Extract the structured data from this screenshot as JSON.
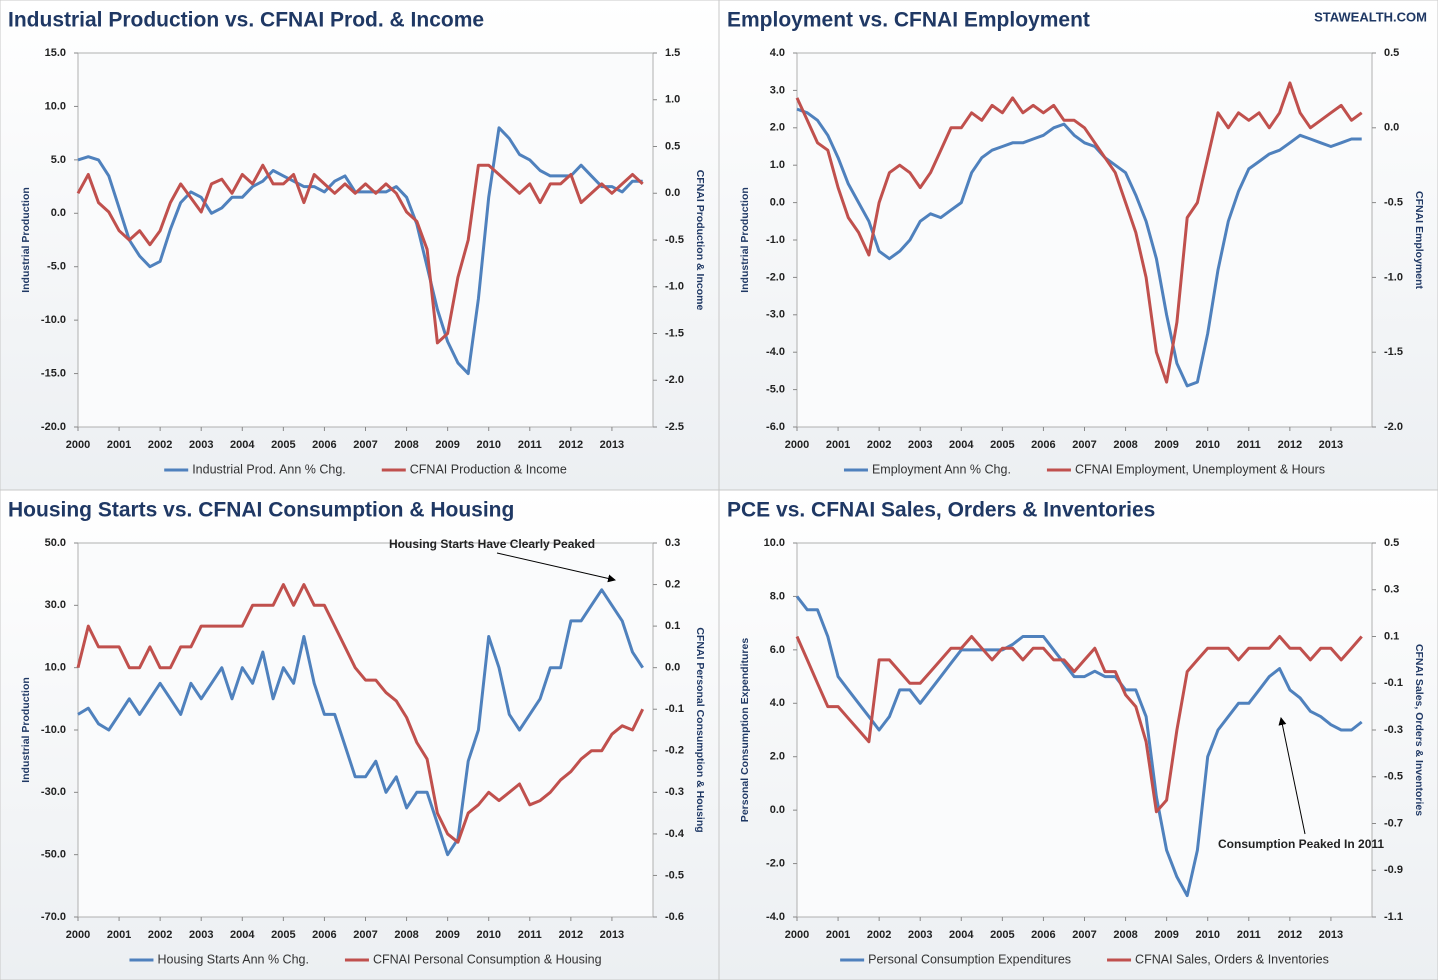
{
  "brand": "STAWEALTH.COM",
  "chart_data": [
    {
      "type": "line",
      "title": "Industrial Production vs. CFNAI Prod. & Income",
      "y_label": "Industrial Production",
      "y2_label": "CFNAI Production & Income",
      "x": [
        2000,
        2000.25,
        2000.5,
        2000.75,
        2001,
        2001.25,
        2001.5,
        2001.75,
        2002,
        2002.25,
        2002.5,
        2002.75,
        2003,
        2003.25,
        2003.5,
        2003.75,
        2004,
        2004.25,
        2004.5,
        2004.75,
        2005,
        2005.25,
        2005.5,
        2005.75,
        2006,
        2006.25,
        2006.5,
        2006.75,
        2007,
        2007.25,
        2007.5,
        2007.75,
        2008,
        2008.25,
        2008.5,
        2008.75,
        2009,
        2009.25,
        2009.5,
        2009.75,
        2010,
        2010.25,
        2010.5,
        2010.75,
        2011,
        2011.25,
        2011.5,
        2011.75,
        2012,
        2012.25,
        2012.5,
        2012.75,
        2013,
        2013.25,
        2013.5,
        2013.75
      ],
      "xlim": [
        2000,
        2014
      ],
      "xticks": [
        2000,
        2001,
        2002,
        2003,
        2004,
        2005,
        2006,
        2007,
        2008,
        2009,
        2010,
        2011,
        2012,
        2013
      ],
      "ylim": [
        -20,
        15
      ],
      "yticks": [
        {
          "value": 15,
          "label": "15.0"
        },
        {
          "value": 10,
          "label": "10.0"
        },
        {
          "value": 5,
          "label": "5.0"
        },
        {
          "value": 0,
          "label": "0.0"
        },
        {
          "value": -5,
          "label": "-5.0"
        },
        {
          "value": -10,
          "label": "-10.0"
        },
        {
          "value": -15,
          "label": "-15.0"
        },
        {
          "value": -20,
          "label": "-20.0"
        }
      ],
      "y2lim": [
        -2.5,
        1.5
      ],
      "y2ticks": [
        1.5,
        {
          "value": 1,
          "label": "1.0"
        },
        0.5,
        {
          "value": 0,
          "label": "0.0"
        },
        -0.5,
        {
          "value": -1,
          "label": "-1.0"
        },
        -1.5,
        {
          "value": -2,
          "label": "-2.0"
        },
        -2.5
      ],
      "series": [
        {
          "name": "Industrial Prod. Ann % Chg.",
          "color": "#4f81bd",
          "values": [
            5.0,
            5.3,
            5.0,
            3.5,
            0.5,
            -2.5,
            -4.0,
            -5.0,
            -4.5,
            -1.5,
            1.0,
            2.0,
            1.5,
            0,
            0.5,
            1.5,
            1.5,
            2.5,
            3.0,
            4.0,
            3.5,
            3.0,
            2.5,
            2.5,
            2.0,
            3.0,
            3.5,
            2.0,
            2.0,
            2.0,
            2.0,
            2.5,
            1.5,
            -1.0,
            -5.0,
            -9.0,
            -12.0,
            -14.0,
            -15.0,
            -8.0,
            1.5,
            8.0,
            7.0,
            5.5,
            5.0,
            4.0,
            3.5,
            3.5,
            3.5,
            4.5,
            3.5,
            2.5,
            2.5,
            2.0,
            3.0,
            3.0
          ]
        },
        {
          "name": "CFNAI Production & Income",
          "color": "#c0504d",
          "axis": "y2",
          "values": [
            0.0,
            0.2,
            -0.1,
            -0.2,
            -0.4,
            -0.5,
            -0.4,
            -0.55,
            -0.4,
            -0.1,
            0.1,
            -0.05,
            -0.2,
            0.1,
            0.15,
            0.0,
            0.2,
            0.1,
            0.3,
            0.1,
            0.1,
            0.2,
            -0.1,
            0.2,
            0.1,
            0.0,
            0.1,
            0.0,
            0.1,
            0.0,
            0.1,
            0.0,
            -0.2,
            -0.3,
            -0.6,
            -1.6,
            -1.5,
            -0.9,
            -0.5,
            0.3,
            0.3,
            0.2,
            0.1,
            0.0,
            0.1,
            -0.1,
            0.1,
            0.1,
            0.2,
            -0.1,
            0.0,
            0.1,
            0.0,
            0.1,
            0.2,
            0.1
          ]
        }
      ]
    },
    {
      "type": "line",
      "title": "Employment vs. CFNAI Employment",
      "y_label": "Industrial Production",
      "y2_label": "CFNAI Employment",
      "x": [
        2000,
        2000.25,
        2000.5,
        2000.75,
        2001,
        2001.25,
        2001.5,
        2001.75,
        2002,
        2002.25,
        2002.5,
        2002.75,
        2003,
        2003.25,
        2003.5,
        2003.75,
        2004,
        2004.25,
        2004.5,
        2004.75,
        2005,
        2005.25,
        2005.5,
        2005.75,
        2006,
        2006.25,
        2006.5,
        2006.75,
        2007,
        2007.25,
        2007.5,
        2007.75,
        2008,
        2008.25,
        2008.5,
        2008.75,
        2009,
        2009.25,
        2009.5,
        2009.75,
        2010,
        2010.25,
        2010.5,
        2010.75,
        2011,
        2011.25,
        2011.5,
        2011.75,
        2012,
        2012.25,
        2012.5,
        2012.75,
        2013,
        2013.25,
        2013.5,
        2013.75
      ],
      "xlim": [
        2000,
        2014
      ],
      "xticks": [
        2000,
        2001,
        2002,
        2003,
        2004,
        2005,
        2006,
        2007,
        2008,
        2009,
        2010,
        2011,
        2012,
        2013
      ],
      "ylim": [
        -6,
        4
      ],
      "yticks": [
        {
          "value": 4,
          "label": "4.0"
        },
        {
          "value": 3,
          "label": "3.0"
        },
        {
          "value": 2,
          "label": "2.0"
        },
        {
          "value": 1,
          "label": "1.0"
        },
        {
          "value": 0,
          "label": "0.0"
        },
        {
          "value": -1,
          "label": "-1.0"
        },
        {
          "value": -2,
          "label": "-2.0"
        },
        {
          "value": -3,
          "label": "-3.0"
        },
        {
          "value": -4,
          "label": "-4.0"
        },
        {
          "value": -5,
          "label": "-5.0"
        },
        {
          "value": -6,
          "label": "-6.0"
        }
      ],
      "y2lim": [
        -2,
        0.5
      ],
      "y2ticks": [
        0.5,
        {
          "value": 0,
          "label": "0.0"
        },
        -0.5,
        {
          "value": -1,
          "label": "-1.0"
        },
        -1.5,
        {
          "value": -2,
          "label": "-2.0"
        }
      ],
      "series": [
        {
          "name": "Employment Ann % Chg.",
          "color": "#4f81bd",
          "values": [
            2.5,
            2.4,
            2.2,
            1.8,
            1.2,
            0.5,
            0,
            -0.5,
            -1.3,
            -1.5,
            -1.3,
            -1.0,
            -0.5,
            -0.3,
            -0.4,
            -0.2,
            0.0,
            0.8,
            1.2,
            1.4,
            1.5,
            1.6,
            1.6,
            1.7,
            1.8,
            2.0,
            2.1,
            1.8,
            1.6,
            1.5,
            1.2,
            1.0,
            0.8,
            0.2,
            -0.5,
            -1.5,
            -3.0,
            -4.3,
            -4.9,
            -4.8,
            -3.5,
            -1.8,
            -0.5,
            0.3,
            0.9,
            1.1,
            1.3,
            1.4,
            1.6,
            1.8,
            1.7,
            1.6,
            1.5,
            1.6,
            1.7,
            1.7
          ]
        },
        {
          "name": "CFNAI Employment, Unemployment & Hours",
          "color": "#c0504d",
          "axis": "y2",
          "values": [
            0.2,
            0.05,
            -0.1,
            -0.15,
            -0.4,
            -0.6,
            -0.7,
            -0.85,
            -0.5,
            -0.3,
            -0.25,
            -0.3,
            -0.4,
            -0.3,
            -0.15,
            0.0,
            0.0,
            0.1,
            0.05,
            0.15,
            0.1,
            0.2,
            0.1,
            0.15,
            0.1,
            0.15,
            0.05,
            0.05,
            0.0,
            -0.1,
            -0.2,
            -0.3,
            -0.5,
            -0.7,
            -1.0,
            -1.5,
            -1.7,
            -1.3,
            -0.6,
            -0.5,
            -0.2,
            0.1,
            0.0,
            0.1,
            0.05,
            0.1,
            0.0,
            0.1,
            0.3,
            0.1,
            0.0,
            0.05,
            0.1,
            0.15,
            0.05,
            0.1
          ]
        }
      ]
    },
    {
      "type": "line",
      "title": "Housing Starts vs. CFNAI Consumption & Housing",
      "y_label": "Industrial Production",
      "y2_label": "CFNAI Personal Consumption & Housing",
      "annotation": "Housing Starts Have Clearly Peaked",
      "x": [
        2000,
        2000.25,
        2000.5,
        2000.75,
        2001,
        2001.25,
        2001.5,
        2001.75,
        2002,
        2002.25,
        2002.5,
        2002.75,
        2003,
        2003.25,
        2003.5,
        2003.75,
        2004,
        2004.25,
        2004.5,
        2004.75,
        2005,
        2005.25,
        2005.5,
        2005.75,
        2006,
        2006.25,
        2006.5,
        2006.75,
        2007,
        2007.25,
        2007.5,
        2007.75,
        2008,
        2008.25,
        2008.5,
        2008.75,
        2009,
        2009.25,
        2009.5,
        2009.75,
        2010,
        2010.25,
        2010.5,
        2010.75,
        2011,
        2011.25,
        2011.5,
        2011.75,
        2012,
        2012.25,
        2012.5,
        2012.75,
        2013,
        2013.25,
        2013.5,
        2013.75
      ],
      "xlim": [
        2000,
        2014
      ],
      "xticks": [
        2000,
        2001,
        2002,
        2003,
        2004,
        2005,
        2006,
        2007,
        2008,
        2009,
        2010,
        2011,
        2012,
        2013
      ],
      "ylim": [
        -70,
        50
      ],
      "yticks": [
        {
          "value": 50,
          "label": "50.0"
        },
        {
          "value": 30,
          "label": "30.0"
        },
        {
          "value": 10,
          "label": "10.0"
        },
        {
          "value": -10,
          "label": "-10.0"
        },
        {
          "value": -30,
          "label": "-30.0"
        },
        {
          "value": -50,
          "label": "-50.0"
        },
        {
          "value": -70,
          "label": "-70.0"
        }
      ],
      "y2lim": [
        -0.6,
        0.3
      ],
      "y2ticks": [
        0.3,
        0.2,
        0.1,
        {
          "value": 0,
          "label": "0.0"
        },
        -0.1,
        -0.2,
        -0.3,
        -0.4,
        -0.5,
        -0.6
      ],
      "series": [
        {
          "name": "Housing Starts Ann % Chg.",
          "color": "#4f81bd",
          "values": [
            -5,
            -3,
            -8,
            -10,
            -5,
            0,
            -5,
            0,
            5,
            0,
            -5,
            5,
            0,
            5,
            10,
            0,
            10,
            5,
            15,
            0,
            10,
            5,
            20,
            5,
            -5,
            -5,
            -15,
            -25,
            -25,
            -20,
            -30,
            -25,
            -35,
            -30,
            -30,
            -40,
            -50,
            -45,
            -20,
            -10,
            20,
            10,
            -5,
            -10,
            -5,
            0,
            10,
            10,
            25,
            25,
            30,
            35,
            30,
            25,
            15,
            10
          ]
        },
        {
          "name": "CFNAI Personal Consumption & Housing",
          "color": "#c0504d",
          "axis": "y2",
          "values": [
            0.0,
            0.1,
            0.05,
            0.05,
            0.05,
            0.0,
            0.0,
            0.05,
            0.0,
            0.0,
            0.05,
            0.05,
            0.1,
            0.1,
            0.1,
            0.1,
            0.1,
            0.15,
            0.15,
            0.15,
            0.2,
            0.15,
            0.2,
            0.15,
            0.15,
            0.1,
            0.05,
            0.0,
            -0.03,
            -0.03,
            -0.06,
            -0.08,
            -0.12,
            -0.18,
            -0.22,
            -0.35,
            -0.4,
            -0.42,
            -0.35,
            -0.33,
            -0.3,
            -0.32,
            -0.3,
            -0.28,
            -0.33,
            -0.32,
            -0.3,
            -0.27,
            -0.25,
            -0.22,
            -0.2,
            -0.2,
            -0.16,
            -0.14,
            -0.15,
            -0.1
          ]
        }
      ]
    },
    {
      "type": "line",
      "title": "PCE vs. CFNAI Sales, Orders & Inventories",
      "y_label": "Personal Consumption Expenditures",
      "y2_label": "CFNAI Sales, Orders & Inventories",
      "annotation": "Consumption Peaked In 2011",
      "x": [
        2000,
        2000.25,
        2000.5,
        2000.75,
        2001,
        2001.25,
        2001.5,
        2001.75,
        2002,
        2002.25,
        2002.5,
        2002.75,
        2003,
        2003.25,
        2003.5,
        2003.75,
        2004,
        2004.25,
        2004.5,
        2004.75,
        2005,
        2005.25,
        2005.5,
        2005.75,
        2006,
        2006.25,
        2006.5,
        2006.75,
        2007,
        2007.25,
        2007.5,
        2007.75,
        2008,
        2008.25,
        2008.5,
        2008.75,
        2009,
        2009.25,
        2009.5,
        2009.75,
        2010,
        2010.25,
        2010.5,
        2010.75,
        2011,
        2011.25,
        2011.5,
        2011.75,
        2012,
        2012.25,
        2012.5,
        2012.75,
        2013,
        2013.25,
        2013.5,
        2013.75
      ],
      "xlim": [
        2000,
        2014
      ],
      "xticks": [
        2000,
        2001,
        2002,
        2003,
        2004,
        2005,
        2006,
        2007,
        2008,
        2009,
        2010,
        2011,
        2012,
        2013
      ],
      "ylim": [
        -4,
        10
      ],
      "yticks": [
        {
          "value": 10,
          "label": "10.0"
        },
        {
          "value": 8,
          "label": "8.0"
        },
        {
          "value": 6,
          "label": "6.0"
        },
        {
          "value": 4,
          "label": "4.0"
        },
        {
          "value": 2,
          "label": "2.0"
        },
        {
          "value": 0,
          "label": "0.0"
        },
        {
          "value": -2,
          "label": "-2.0"
        },
        {
          "value": -4,
          "label": "-4.0"
        }
      ],
      "y2lim": [
        -1.1,
        0.5
      ],
      "y2ticks": [
        0.5,
        0.3,
        0.1,
        -0.1,
        -0.3,
        -0.5,
        -0.7,
        -0.9,
        -1.1
      ],
      "series": [
        {
          "name": "Personal Consumption Expenditures",
          "color": "#4f81bd",
          "values": [
            8.0,
            7.5,
            7.5,
            6.5,
            5.0,
            4.5,
            4.0,
            3.5,
            3.0,
            3.5,
            4.5,
            4.5,
            4.0,
            4.5,
            5.0,
            5.5,
            6.0,
            6.0,
            6.0,
            6.0,
            6.0,
            6.2,
            6.5,
            6.5,
            6.5,
            6.0,
            5.5,
            5.0,
            5.0,
            5.2,
            5.0,
            5.0,
            4.5,
            4.5,
            3.5,
            0.5,
            -1.5,
            -2.5,
            -3.2,
            -1.5,
            2.0,
            3.0,
            3.5,
            4.0,
            4.0,
            4.5,
            5.0,
            5.3,
            4.5,
            4.2,
            3.7,
            3.5,
            3.2,
            3.0,
            3.0,
            3.3
          ]
        },
        {
          "name": "CFNAI Sales, Orders & Inventories",
          "color": "#c0504d",
          "axis": "y2",
          "values": [
            0.1,
            0.0,
            -0.1,
            -0.2,
            -0.2,
            -0.25,
            -0.3,
            -0.35,
            0.0,
            0.0,
            -0.05,
            -0.1,
            -0.1,
            -0.05,
            0.0,
            0.05,
            0.05,
            0.1,
            0.05,
            0.0,
            0.05,
            0.05,
            0.0,
            0.05,
            0.05,
            0.0,
            0.0,
            -0.05,
            0.0,
            0.05,
            -0.05,
            -0.05,
            -0.15,
            -0.2,
            -0.35,
            -0.65,
            -0.6,
            -0.3,
            -0.05,
            0.0,
            0.05,
            0.05,
            0.05,
            0.0,
            0.05,
            0.05,
            0.05,
            0.1,
            0.05,
            0.05,
            0.0,
            0.05,
            0.05,
            0.0,
            0.05,
            0.1
          ]
        }
      ]
    }
  ]
}
